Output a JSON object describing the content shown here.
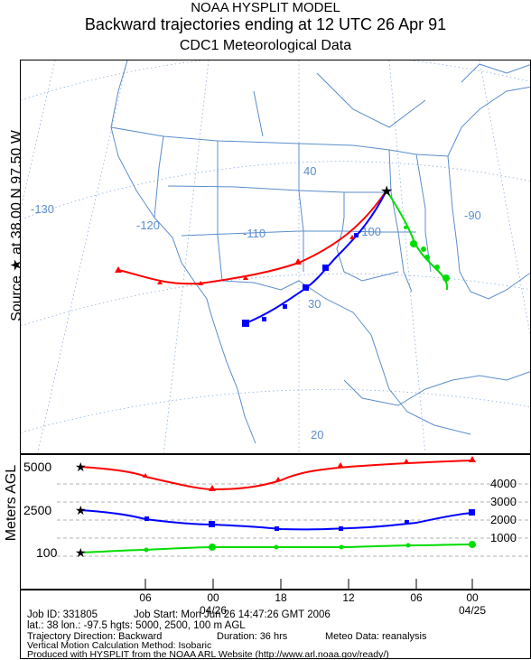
{
  "title": {
    "line1": "NOAA HYSPLIT MODEL",
    "line2": "Backward trajectories ending at 12 UTC 26 Apr 91",
    "line3": "CDC1 Meteorological Data"
  },
  "source_label": "Source ★ at 38.00 N 97.50 W",
  "map": {
    "lat_labels": [
      "40",
      "30",
      "20"
    ],
    "lon_labels": [
      "-130",
      "-120",
      "-110",
      "-100",
      "-90"
    ],
    "colors": {
      "red": "#ff0000",
      "blue": "#0000ff",
      "green": "#00dd00",
      "map_lines": "#5b8dcc",
      "grid": "#5b8dcc"
    }
  },
  "height_panel": {
    "ylabel": "Meters AGL",
    "left_ticks": [
      "5000",
      "2500",
      "100"
    ],
    "right_ticks": [
      "4000",
      "3000",
      "2000",
      "1000"
    ],
    "x_ticks": [
      "06",
      "00",
      "18",
      "12",
      "06",
      "00"
    ],
    "date_labels": [
      "04/26",
      "04/25"
    ]
  },
  "info": {
    "job_id": "Job ID: 331805",
    "job_start": "Job Start: Mon Jun 26 14:47:26 GMT 2006",
    "location": "lat.: 38   lon.: -97.5   hgts: 5000, 2500, 100 m AGL",
    "direction": "Trajectory Direction: Backward",
    "duration": "Duration: 36 hrs",
    "meteo": "Meteo Data: reanalysis",
    "vertical": "Vertical Motion Calculation Method: Isobaric",
    "produced": "Produced with HYSPLIT from the NOAA ARL Website (http://www.arl.noaa.gov/ready/)"
  }
}
